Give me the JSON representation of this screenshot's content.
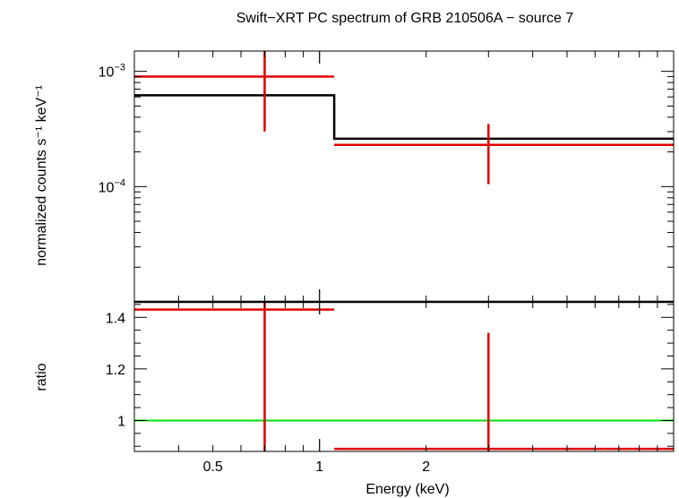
{
  "chart_data": [
    {
      "type": "scatter",
      "panel": "spectrum",
      "title": "Swift−XRT PC spectrum of GRB 210506A − source 7",
      "ylabel": "normalized counts s⁻¹ keV⁻¹",
      "xscale": "log",
      "yscale": "log",
      "xlim": [
        0.3,
        10.0
      ],
      "ylim": [
        1e-05,
        0.0015
      ],
      "yticks": [
        {
          "value": 0.001,
          "mantissa": "10",
          "exponent": "−3"
        },
        {
          "value": 0.0001,
          "mantissa": "10",
          "exponent": "−4"
        }
      ],
      "data": {
        "color": "#e00000",
        "points": [
          {
            "x": 0.7,
            "xlo": 0.3,
            "xhi": 1.1,
            "y": 0.0009,
            "ylo": 0.0003,
            "yhi": 0.0015
          },
          {
            "x": 3.0,
            "xlo": 1.1,
            "xhi": 10.0,
            "y": 0.00023,
            "ylo": 0.000105,
            "yhi": 0.00035
          }
        ]
      },
      "model": {
        "color": "#000000",
        "steps": [
          {
            "xlo": 0.3,
            "xhi": 1.1,
            "y": 0.00062
          },
          {
            "xlo": 1.1,
            "xhi": 10.0,
            "y": 0.00026
          }
        ]
      }
    },
    {
      "type": "scatter",
      "panel": "ratio",
      "xlabel": "Energy (keV)",
      "ylabel": "ratio",
      "xscale": "log",
      "xlim": [
        0.3,
        10.0
      ],
      "ylim": [
        0.88,
        1.46
      ],
      "yticks": [
        1.4,
        1.2,
        1
      ],
      "xticks": [
        {
          "value": 0.5,
          "label": "0.5"
        },
        {
          "value": 1,
          "label": "1"
        },
        {
          "value": 2,
          "label": "2"
        }
      ],
      "reference": {
        "y": 1,
        "color": "#00e000"
      },
      "data": {
        "color": "#e00000",
        "points": [
          {
            "x": 0.7,
            "xlo": 0.3,
            "xhi": 1.1,
            "y": 1.43,
            "ylo": 0.88,
            "yhi": 1.46
          },
          {
            "x": 3.0,
            "xlo": 1.1,
            "xhi": 10.0,
            "y": 0.89,
            "ylo": 0.88,
            "yhi": 1.34
          }
        ]
      }
    }
  ]
}
